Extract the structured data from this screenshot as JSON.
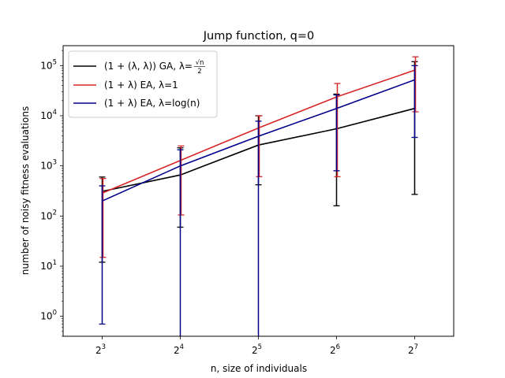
{
  "chart_data": {
    "type": "line",
    "title": "Jump function, q=0",
    "xlabel": "n, size of individuals",
    "ylabel": "number of noisy fitness evaluations",
    "x_scale": "log2",
    "y_scale": "log10",
    "x": [
      8,
      16,
      32,
      64,
      128
    ],
    "x_tick_labels": [
      {
        "base": "2",
        "exp": "3"
      },
      {
        "base": "2",
        "exp": "4"
      },
      {
        "base": "2",
        "exp": "5"
      },
      {
        "base": "2",
        "exp": "6"
      },
      {
        "base": "2",
        "exp": "7"
      }
    ],
    "y_tick_labels": [
      {
        "base": "10",
        "exp": "0"
      },
      {
        "base": "10",
        "exp": "1"
      },
      {
        "base": "10",
        "exp": "2"
      },
      {
        "base": "10",
        "exp": "3"
      },
      {
        "base": "10",
        "exp": "4"
      },
      {
        "base": "10",
        "exp": "5"
      }
    ],
    "ylim": [
      0.4,
      250000
    ],
    "legend_position": "upper-left",
    "grid": false,
    "series": [
      {
        "name": "GA",
        "legend": {
          "prefix": "(1 + (λ, λ)) GA, λ=",
          "fraction_num": "√n",
          "fraction_den": "2"
        },
        "color": "#000000",
        "values": [
          310,
          660,
          2600,
          5500,
          14000
        ],
        "lower": [
          12,
          60,
          420,
          160,
          270
        ],
        "upper": [
          600,
          2300,
          10000,
          27000,
          120000
        ]
      },
      {
        "name": "EA λ=1",
        "legend": {
          "text": "(1 + λ) EA, λ=1"
        },
        "color": "#d62728",
        "values": [
          290,
          1300,
          5800,
          24000,
          82000
        ],
        "lower": [
          15,
          105,
          610,
          610,
          12000
        ],
        "upper": [
          560,
          2500,
          10000,
          44000,
          150000
        ]
      },
      {
        "name": "EA λ=log(n)",
        "legend": {
          "text": "(1 + λ) EA, λ=log(n)"
        },
        "color": "#00008b",
        "values": [
          200,
          1000,
          3900,
          14000,
          52000
        ],
        "lower": [
          0.7,
          0.3,
          0.3,
          800,
          3700
        ],
        "upper": [
          400,
          2100,
          7800,
          26000,
          100000
        ]
      }
    ]
  }
}
